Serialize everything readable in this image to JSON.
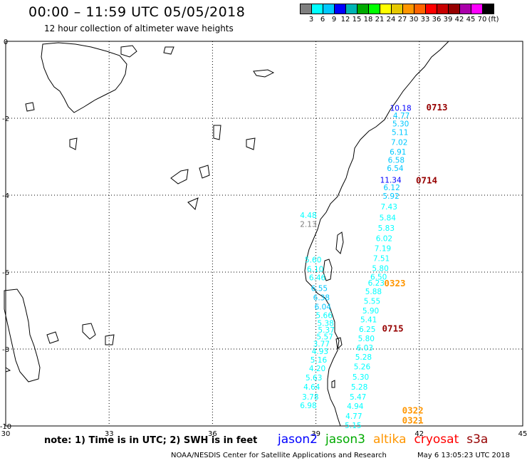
{
  "title": "00:00 – 11:59 UTC 05/05/2018",
  "subtitle": "12 hour collection of altimeter wave heights",
  "legend": {
    "colors": [
      "#7f7f7f",
      "#00ffff",
      "#00c8ff",
      "#0000ff",
      "#00b4b4",
      "#00aa00",
      "#00ff00",
      "#ffff00",
      "#e6c800",
      "#ff9600",
      "#ff6400",
      "#ff0000",
      "#c80000",
      "#960000",
      "#aa00aa",
      "#ff00ff",
      "#000000"
    ],
    "labels": [
      "3",
      "6",
      "9",
      "12",
      "15",
      "18",
      "21",
      "24",
      "27",
      "30",
      "33",
      "36",
      "39",
      "42",
      "45",
      "70",
      "(ft)"
    ]
  },
  "axes": {
    "x_ticks": [
      "30",
      "33",
      "36",
      "39",
      "42",
      "45"
    ],
    "y_ticks": [
      "0",
      "-2",
      "-4",
      "-6",
      "-8",
      "-10"
    ],
    "x_range": [
      30,
      45
    ],
    "y_range": [
      -10,
      0
    ]
  },
  "observations": [
    {
      "text": "10.18",
      "lon": 41.46,
      "lat": -1.73,
      "color": "#0000ff"
    },
    {
      "text": "4.77",
      "lon": 41.48,
      "lat": -1.93,
      "color": "#00c8ff"
    },
    {
      "text": "5.30",
      "lon": 41.46,
      "lat": -2.14,
      "color": "#00c8ff"
    },
    {
      "text": "5.11",
      "lon": 41.44,
      "lat": -2.36,
      "color": "#00c8ff"
    },
    {
      "text": "7.02",
      "lon": 41.42,
      "lat": -2.62,
      "color": "#00c8ff"
    },
    {
      "text": "6.91",
      "lon": 41.38,
      "lat": -2.87,
      "color": "#00c8ff"
    },
    {
      "text": "6.58",
      "lon": 41.33,
      "lat": -3.08,
      "color": "#00c8ff"
    },
    {
      "text": "6.54",
      "lon": 41.3,
      "lat": -3.3,
      "color": "#00c8ff"
    },
    {
      "text": "11.34",
      "lon": 41.17,
      "lat": -3.6,
      "color": "#0000ff"
    },
    {
      "text": "6.12",
      "lon": 41.2,
      "lat": -3.8,
      "color": "#00c8ff"
    },
    {
      "text": "5.92",
      "lon": 41.18,
      "lat": -4.02,
      "color": "#00c8ff"
    },
    {
      "text": "7.43",
      "lon": 41.12,
      "lat": -4.3,
      "color": "#00ffff"
    },
    {
      "text": "5.84",
      "lon": 41.08,
      "lat": -4.58,
      "color": "#00ffff"
    },
    {
      "text": "5.83",
      "lon": 41.04,
      "lat": -4.85,
      "color": "#00ffff"
    },
    {
      "text": "6.02",
      "lon": 40.98,
      "lat": -5.12,
      "color": "#00ffff"
    },
    {
      "text": "7.19",
      "lon": 40.94,
      "lat": -5.38,
      "color": "#00ffff"
    },
    {
      "text": "7.51",
      "lon": 40.9,
      "lat": -5.64,
      "color": "#00ffff"
    },
    {
      "text": "5.80",
      "lon": 40.87,
      "lat": -5.9,
      "color": "#00ffff"
    },
    {
      "text": "6.50",
      "lon": 40.82,
      "lat": -6.12,
      "color": "#00ffff"
    },
    {
      "text": "6.23",
      "lon": 40.75,
      "lat": -6.28,
      "color": "#00ffff"
    },
    {
      "text": "5.88",
      "lon": 40.67,
      "lat": -6.5,
      "color": "#00ffff"
    },
    {
      "text": "5.55",
      "lon": 40.63,
      "lat": -6.75,
      "color": "#00ffff"
    },
    {
      "text": "5.90",
      "lon": 40.59,
      "lat": -7.0,
      "color": "#00ffff"
    },
    {
      "text": "5.41",
      "lon": 40.53,
      "lat": -7.23,
      "color": "#00ffff"
    },
    {
      "text": "6.25",
      "lon": 40.49,
      "lat": -7.48,
      "color": "#00ffff"
    },
    {
      "text": "5.80",
      "lon": 40.46,
      "lat": -7.72,
      "color": "#00ffff"
    },
    {
      "text": "6.03",
      "lon": 40.42,
      "lat": -7.96,
      "color": "#00ffff"
    },
    {
      "text": "5.28",
      "lon": 40.38,
      "lat": -8.2,
      "color": "#00ffff"
    },
    {
      "text": "5.26",
      "lon": 40.34,
      "lat": -8.45,
      "color": "#00ffff"
    },
    {
      "text": "5.30",
      "lon": 40.3,
      "lat": -8.72,
      "color": "#00ffff"
    },
    {
      "text": "5.28",
      "lon": 40.26,
      "lat": -8.98,
      "color": "#00ffff"
    },
    {
      "text": "5.47",
      "lon": 40.22,
      "lat": -9.24,
      "color": "#00ffff"
    },
    {
      "text": "4.94",
      "lon": 40.14,
      "lat": -9.48,
      "color": "#00ffff"
    },
    {
      "text": "4.77",
      "lon": 40.1,
      "lat": -9.74,
      "color": "#00ffff"
    },
    {
      "text": "5.15",
      "lon": 40.08,
      "lat": -9.98,
      "color": "#00ffff"
    },
    {
      "text": "4.48",
      "lon": 38.78,
      "lat": -4.52,
      "color": "#00ffff"
    },
    {
      "text": "2.13",
      "lon": 38.78,
      "lat": -4.75,
      "color": "#7f7f7f"
    },
    {
      "text": "5.60",
      "lon": 38.92,
      "lat": -5.68,
      "color": "#00ffff"
    },
    {
      "text": "6.10",
      "lon": 38.98,
      "lat": -5.92,
      "color": "#00ffff"
    },
    {
      "text": "6.46",
      "lon": 39.04,
      "lat": -6.14,
      "color": "#00ffff"
    },
    {
      "text": "6.55",
      "lon": 39.1,
      "lat": -6.42,
      "color": "#00c8ff"
    },
    {
      "text": "6.38",
      "lon": 39.16,
      "lat": -6.66,
      "color": "#00c8ff"
    },
    {
      "text": "6.04",
      "lon": 39.2,
      "lat": -6.9,
      "color": "#00c8ff"
    },
    {
      "text": "5.66",
      "lon": 39.24,
      "lat": -7.12,
      "color": "#00ffff"
    },
    {
      "text": "5.38",
      "lon": 39.28,
      "lat": -7.32,
      "color": "#00ffff"
    },
    {
      "text": "5.37",
      "lon": 39.3,
      "lat": -7.5,
      "color": "#00ffff"
    },
    {
      "text": "5.57",
      "lon": 39.26,
      "lat": -7.68,
      "color": "#00ffff"
    },
    {
      "text": "3.77",
      "lon": 39.16,
      "lat": -7.86,
      "color": "#00ffff"
    },
    {
      "text": "4.93",
      "lon": 39.12,
      "lat": -8.06,
      "color": "#00ffff"
    },
    {
      "text": "5.16",
      "lon": 39.08,
      "lat": -8.28,
      "color": "#00ffff"
    },
    {
      "text": "4.20",
      "lon": 39.04,
      "lat": -8.5,
      "color": "#00ffff"
    },
    {
      "text": "5.63",
      "lon": 38.94,
      "lat": -8.74,
      "color": "#00ffff"
    },
    {
      "text": "4.64",
      "lon": 38.88,
      "lat": -8.98,
      "color": "#00ffff"
    },
    {
      "text": "3.78",
      "lon": 38.84,
      "lat": -9.24,
      "color": "#00ffff"
    },
    {
      "text": "6.98",
      "lon": 38.78,
      "lat": -9.46,
      "color": "#00ffff"
    }
  ],
  "pass_labels": [
    {
      "text": "0713",
      "lon": 42.2,
      "lat": -1.72,
      "color": "#960000"
    },
    {
      "text": "0714",
      "lon": 41.9,
      "lat": -3.62,
      "color": "#960000"
    },
    {
      "text": "0323",
      "lon": 40.98,
      "lat": -6.3,
      "color": "#ff9600"
    },
    {
      "text": "0715",
      "lon": 40.92,
      "lat": -7.47,
      "color": "#960000"
    },
    {
      "text": "0322",
      "lon": 41.5,
      "lat": -9.6,
      "color": "#ff9600"
    },
    {
      "text": "0321",
      "lon": 41.5,
      "lat": -9.86,
      "color": "#ff9600"
    }
  ],
  "note": "note: 1) Time is in UTC; 2) SWH is in feet",
  "satellites": [
    {
      "name": "jason2",
      "color": "#0000ff"
    },
    {
      "name": "jason3",
      "color": "#00aa00"
    },
    {
      "name": "altika",
      "color": "#ff9600"
    },
    {
      "name": "cryosat",
      "color": "#ff0000"
    },
    {
      "name": "s3a",
      "color": "#960000"
    }
  ],
  "footer": {
    "credit": "NOAA/NESDIS Center for Satellite Applications and Research",
    "timestamp": "May  6 13:05:23 UTC 2018"
  }
}
